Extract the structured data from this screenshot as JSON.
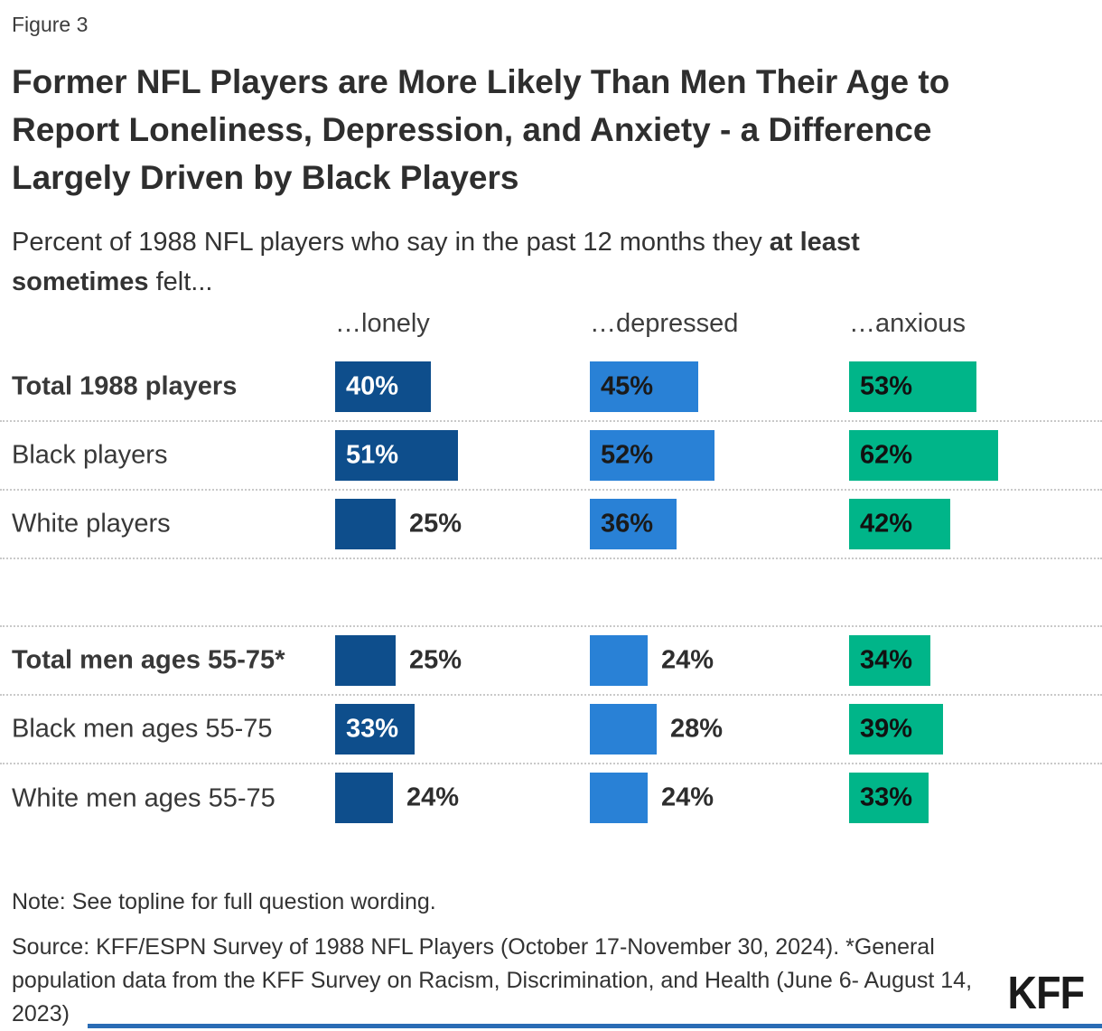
{
  "figure_label": "Figure 3",
  "title": "Former NFL Players are More Likely Than Men Their Age to Report Loneliness, Depression, and Anxiety - a Difference Largely Driven by Black Players",
  "subtitle": {
    "prefix": "Percent of 1988 NFL players who say in the past 12 months they ",
    "bold": "at least sometimes",
    "suffix": " felt..."
  },
  "chart_data": {
    "type": "bar",
    "unit": "%",
    "columns": [
      "…lonely",
      "…depressed",
      "…anxious"
    ],
    "column_keys": [
      "lonely",
      "depressed",
      "anxious"
    ],
    "xlim": [
      0,
      100
    ],
    "colors": {
      "lonely": "#0E4E8C",
      "depressed": "#2981D6",
      "anxious": "#00B589"
    },
    "inside_label_colors": [
      "#ffffff",
      "#1a1a1a",
      "#111111"
    ],
    "groups": [
      {
        "rows": [
          {
            "label": "Total 1988 players",
            "bold": true,
            "values": [
              40,
              45,
              53
            ]
          },
          {
            "label": "Black players",
            "bold": false,
            "values": [
              51,
              52,
              62
            ]
          },
          {
            "label": "White players",
            "bold": false,
            "values": [
              25,
              36,
              42
            ]
          }
        ]
      },
      {
        "rows": [
          {
            "label": "Total men ages 55-75*",
            "bold": true,
            "values": [
              25,
              24,
              34
            ]
          },
          {
            "label": "Black men ages 55-75",
            "bold": false,
            "values": [
              33,
              28,
              39
            ]
          },
          {
            "label": "White men ages 55-75",
            "bold": false,
            "values": [
              24,
              24,
              33
            ]
          }
        ]
      }
    ]
  },
  "note": "Note: See topline for full question wording.",
  "source": "Source: KFF/ESPN Survey of 1988 NFL Players (October 17-November 30, 2024). *General population data from the KFF Survey on Racism, Discrimination, and Health (June 6- August 14, 2023)",
  "logo_text": "KFF",
  "accent_color": "#2A6CB5"
}
